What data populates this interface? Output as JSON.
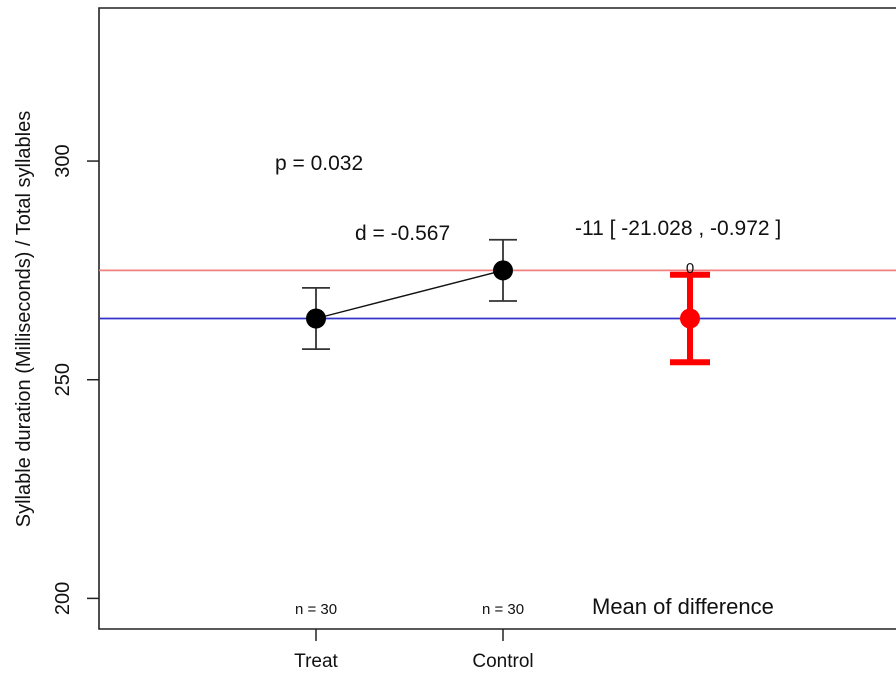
{
  "chart_data": {
    "type": "scatter",
    "ylabel": "Syllable duration (Milliseconds) / Total syllables",
    "ylim": [
      193,
      335
    ],
    "y_ticks": [
      200,
      250,
      300
    ],
    "categories": [
      "Treat",
      "Control"
    ],
    "groups": [
      {
        "name": "Treat",
        "mean": 264,
        "ci_low": 257,
        "ci_high": 271,
        "n_label": "n = 30"
      },
      {
        "name": "Control",
        "mean": 275,
        "ci_low": 268,
        "ci_high": 282,
        "n_label": "n = 30"
      }
    ],
    "difference": {
      "label": "Mean of difference",
      "mean": 264,
      "ci_low": 254,
      "ci_high": 274,
      "marker_label": "0",
      "color": "#ff0000"
    },
    "reference_lines": [
      {
        "value": 275,
        "color": "#f08080"
      },
      {
        "value": 264,
        "color": "#3333cc"
      }
    ],
    "annotations": {
      "p_value": "p = 0.032",
      "effect_size": "d = -0.567",
      "difference_ci": "-11 [ -21.028 , -0.972 ]"
    },
    "grid": false
  }
}
